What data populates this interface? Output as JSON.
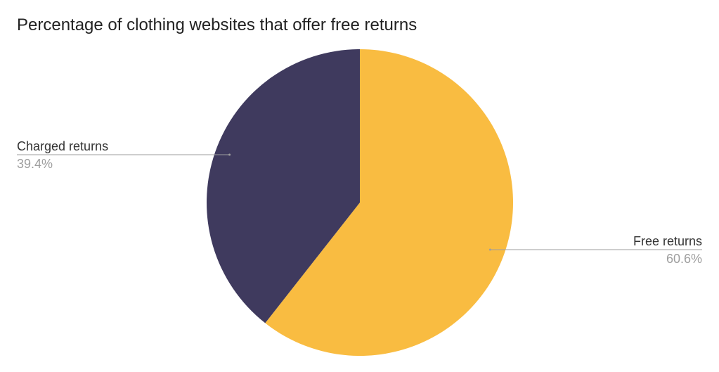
{
  "chart_data": {
    "type": "pie",
    "title": "Percentage of clothing websites that offer free returns",
    "slices": [
      {
        "label": "Free returns",
        "value": 60.6,
        "display": "60.6%",
        "color": "#F9BC41"
      },
      {
        "label": "Charged returns",
        "value": 39.4,
        "display": "39.4%",
        "color": "#3F3A5E"
      }
    ],
    "start_angle": "top",
    "direction": "clockwise",
    "legend": "none (callout labels)"
  }
}
